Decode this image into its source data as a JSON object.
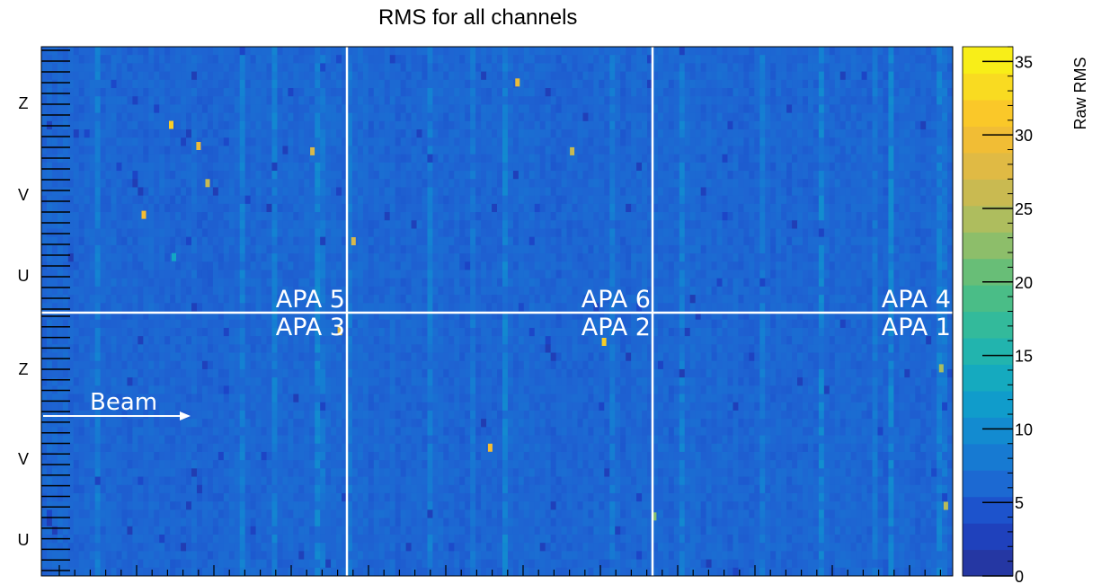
{
  "chart_data": {
    "type": "heatmap",
    "title": "RMS for all channels",
    "xlabel": "",
    "ylabel": "",
    "colorbar": {
      "label": "Raw RMS",
      "range": [
        0,
        36
      ],
      "ticks": [
        0,
        5,
        10,
        15,
        20,
        25,
        30,
        35
      ],
      "tick_labels": [
        "0",
        "5",
        "10",
        "15",
        "20",
        "25",
        "30",
        "35"
      ]
    },
    "grid": false,
    "y_planes": {
      "top_half": [
        "Z",
        "V",
        "U"
      ],
      "bottom_half": [
        "Z",
        "V",
        "U"
      ]
    },
    "panels": [
      {
        "label": "APA 5",
        "row": "top",
        "col": 0
      },
      {
        "label": "APA 6",
        "row": "top",
        "col": 1
      },
      {
        "label": "APA 4",
        "row": "top",
        "col": 2
      },
      {
        "label": "APA 3",
        "row": "bottom",
        "col": 0
      },
      {
        "label": "APA 2",
        "row": "bottom",
        "col": 1
      },
      {
        "label": "APA 1",
        "row": "bottom",
        "col": 2
      }
    ],
    "annotation": {
      "text": "Beam",
      "direction": "right"
    },
    "background_level": 6,
    "hot_cells": [
      {
        "col": 0.14,
        "row": 0.14,
        "value": 32
      },
      {
        "col": 0.11,
        "row": 0.31,
        "value": 30
      },
      {
        "col": 0.17,
        "row": 0.18,
        "value": 29
      },
      {
        "col": 0.18,
        "row": 0.25,
        "value": 26
      },
      {
        "col": 0.295,
        "row": 0.19,
        "value": 27
      },
      {
        "col": 0.325,
        "row": 0.53,
        "value": 28
      },
      {
        "col": 0.34,
        "row": 0.36,
        "value": 27
      },
      {
        "col": 0.52,
        "row": 0.06,
        "value": 29
      },
      {
        "col": 0.58,
        "row": 0.19,
        "value": 26
      },
      {
        "col": 0.615,
        "row": 0.55,
        "value": 32
      },
      {
        "col": 0.49,
        "row": 0.75,
        "value": 30
      },
      {
        "col": 0.985,
        "row": 0.6,
        "value": 24
      },
      {
        "col": 0.99,
        "row": 0.86,
        "value": 25
      },
      {
        "col": 0.67,
        "row": 0.88,
        "value": 22
      },
      {
        "col": 0.143,
        "row": 0.39,
        "value": 13
      }
    ]
  }
}
